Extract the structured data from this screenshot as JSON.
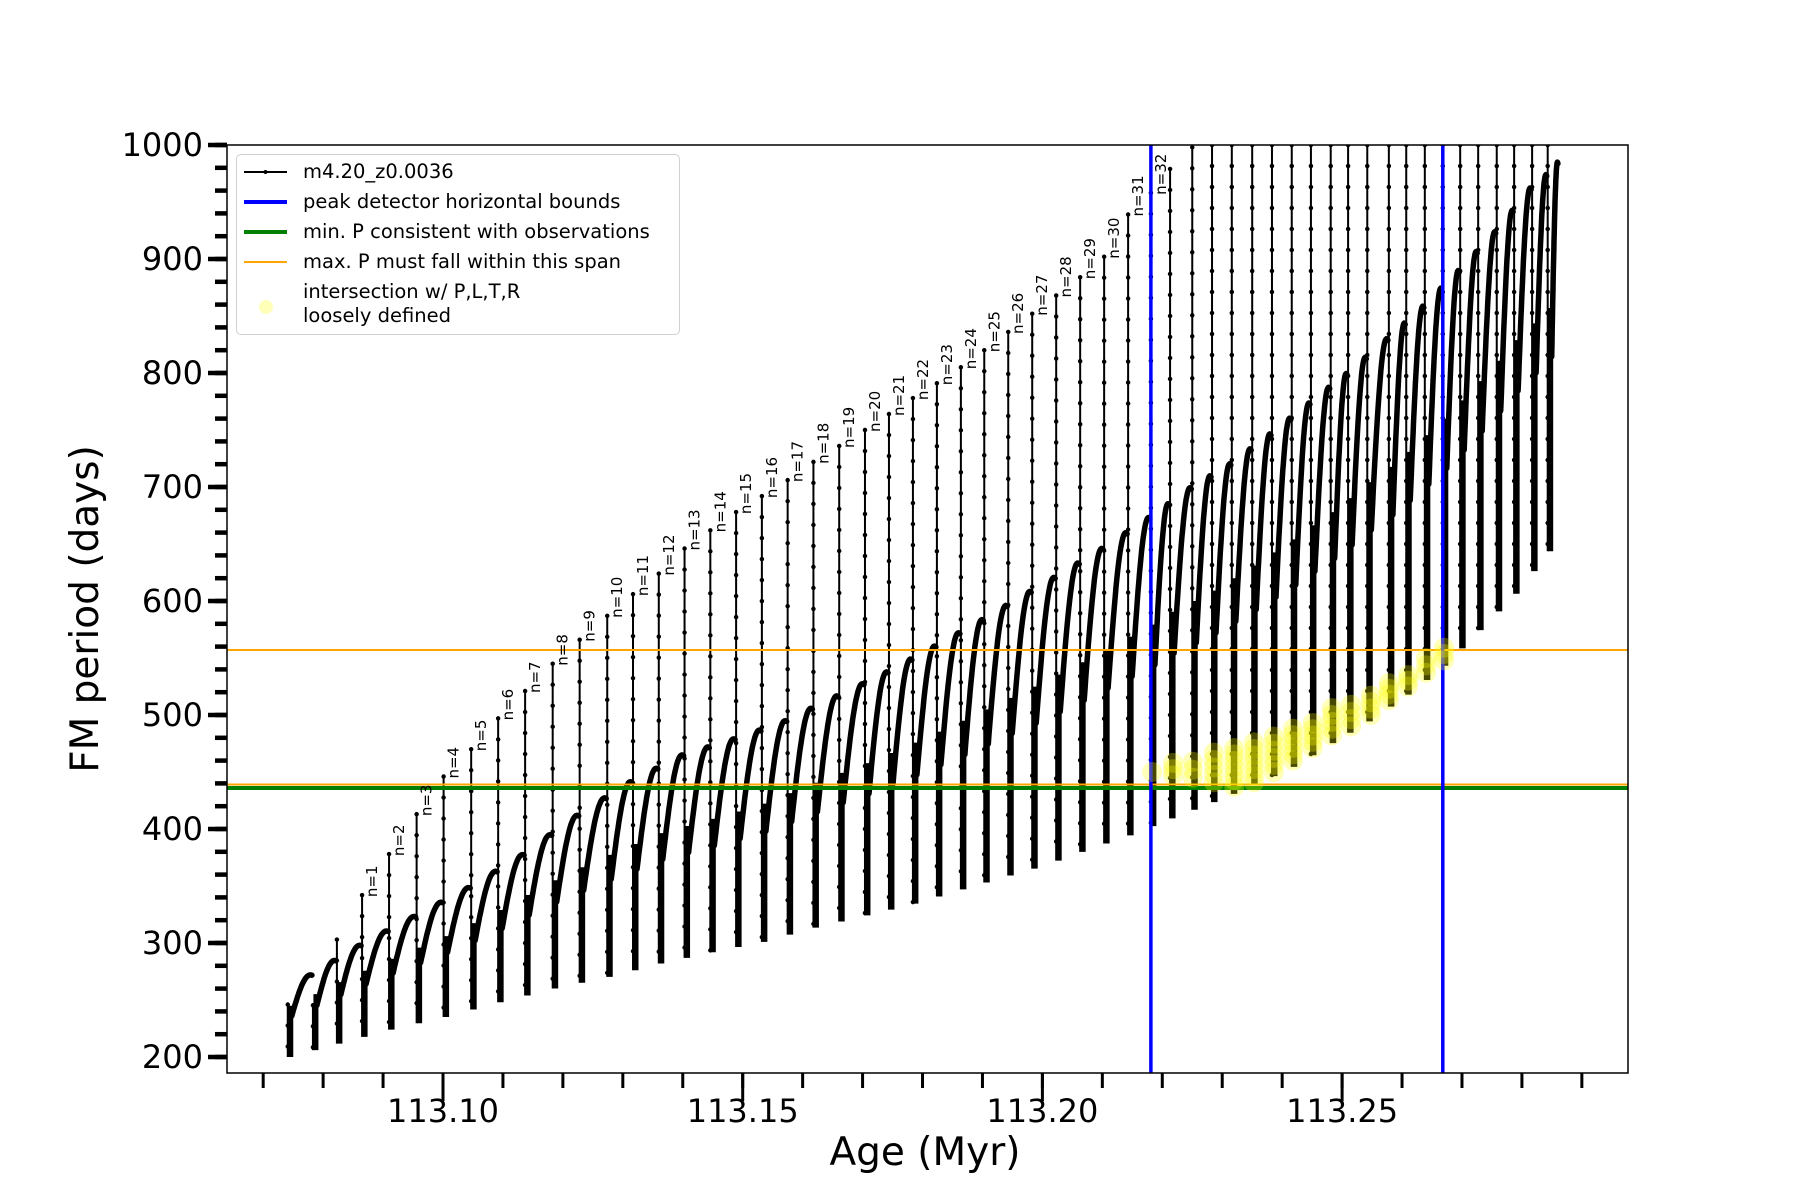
{
  "chart_data": {
    "type": "line",
    "xlabel": "Age (Myr)",
    "ylabel": "FM period (days)",
    "xlim": [
      113.0694,
      113.2977
    ],
    "ylim": [
      186,
      1000
    ],
    "xticks": {
      "values": [
        113.1,
        113.15,
        113.2,
        113.25
      ],
      "labels": [
        "113.10",
        "113.15",
        "113.20",
        "113.25"
      ],
      "minor_step": 0.01
    },
    "yticks": {
      "values": [
        200,
        300,
        400,
        500,
        600,
        700,
        800,
        900,
        1000
      ],
      "labels": [
        "200",
        "300",
        "400",
        "500",
        "600",
        "700",
        "800",
        "900",
        "1000"
      ],
      "minor_step": 20
    },
    "grid": false,
    "legend_position": "top-left",
    "legend": [
      {
        "label": "m4.20_z0.0036",
        "color": "#000000",
        "kind": "line-marker"
      },
      {
        "label": "peak detector horizontal bounds",
        "color": "#0000ff",
        "kind": "line"
      },
      {
        "label": "min. P consistent with observations",
        "color": "#008000",
        "kind": "line"
      },
      {
        "label": "max. P must fall within this span",
        "color": "#ffa500",
        "kind": "line"
      },
      {
        "label": "intersection w/ P,L,T,R",
        "label2": "loosely defined",
        "color": "#ffff66",
        "kind": "marker"
      }
    ],
    "series": {
      "name": "m4.20_z0.0036",
      "pulse_ages": [
        113.0741,
        113.0783,
        113.0823,
        113.0865,
        113.091,
        113.0956,
        113.1001,
        113.1047,
        113.1092,
        113.1137,
        113.1183,
        113.1228,
        113.1274,
        113.1317,
        113.136,
        113.1403,
        113.1446,
        113.1489,
        113.1532,
        113.1575,
        113.1618,
        113.1661,
        113.1704,
        113.1744,
        113.1784,
        113.1824,
        113.1864,
        113.1903,
        113.1943,
        113.1983,
        113.2023,
        113.2063,
        113.2103,
        113.2143,
        113.2181,
        113.2213,
        113.225,
        113.2283,
        113.2316,
        113.235,
        113.2383,
        113.2416,
        113.2448,
        113.2481,
        113.251,
        113.2542,
        113.2578,
        113.2607,
        113.2638,
        113.2668,
        113.2697,
        113.2727,
        113.2758,
        113.2787,
        113.2817,
        113.2843
      ],
      "pulse_spike_tops": [
        246,
        null,
        303,
        342,
        378,
        413,
        446,
        470,
        497,
        521,
        545,
        566,
        587,
        606,
        624,
        646,
        662,
        678,
        692,
        706,
        722,
        736,
        750,
        764,
        778,
        791,
        805,
        820,
        836,
        852,
        868,
        884,
        902,
        939,
        958,
        979,
        998,
        1000,
        1000,
        1000,
        1000,
        1000,
        1000,
        1000,
        1000,
        1000,
        1000,
        1000,
        1000,
        1000,
        1000,
        1000,
        1000,
        1000,
        1000,
        1000
      ],
      "arc_peak_envelope": [
        [
          113.0775,
          272
        ],
        [
          113.0857,
          298
        ],
        [
          113.0947,
          323
        ],
        [
          113.1037,
          348
        ],
        [
          113.1125,
          376
        ],
        [
          113.1217,
          411
        ],
        [
          113.1307,
          441
        ],
        [
          113.1395,
          465
        ],
        [
          113.1475,
          478
        ],
        [
          113.1559,
          493
        ],
        [
          113.1642,
          514
        ],
        [
          113.1726,
          535
        ],
        [
          113.1804,
          557
        ],
        [
          113.1883,
          580
        ],
        [
          113.1954,
          602
        ],
        [
          113.2029,
          625
        ],
        [
          113.2104,
          649
        ],
        [
          113.2175,
          674
        ],
        [
          113.2241,
          699
        ],
        [
          113.2313,
          722
        ],
        [
          113.2376,
          747
        ],
        [
          113.2443,
          775
        ],
        [
          113.2508,
          802
        ],
        [
          113.2572,
          831
        ],
        [
          113.2633,
          860
        ],
        [
          113.2693,
          892
        ],
        [
          113.2752,
          925
        ],
        [
          113.281,
          963
        ],
        [
          113.286,
          985
        ]
      ],
      "trough_envelope": [
        [
          113.0741,
          200
        ],
        [
          113.0825,
          212
        ],
        [
          113.091,
          224
        ],
        [
          113.1,
          235
        ],
        [
          113.1092,
          248
        ],
        [
          113.1182,
          260
        ],
        [
          113.1272,
          270
        ],
        [
          113.136,
          282
        ],
        [
          113.1447,
          292
        ],
        [
          113.1532,
          301
        ],
        [
          113.1614,
          313
        ],
        [
          113.1694,
          323
        ],
        [
          113.1774,
          333
        ],
        [
          113.1851,
          345
        ],
        [
          113.1928,
          357
        ],
        [
          113.2001,
          368
        ],
        [
          113.2074,
          382
        ],
        [
          113.2146,
          395
        ],
        [
          113.2216,
          410
        ],
        [
          113.2285,
          424
        ],
        [
          113.2353,
          439
        ],
        [
          113.2418,
          455
        ],
        [
          113.2483,
          476
        ],
        [
          113.2547,
          496
        ],
        [
          113.261,
          519
        ],
        [
          113.267,
          544
        ],
        [
          113.273,
          576
        ],
        [
          113.279,
          608
        ],
        [
          113.2845,
          645
        ]
      ],
      "end_point": [
        113.286,
        985
      ]
    },
    "mode_labels": {
      "first_pulse_index": 3,
      "labels": [
        "n=1",
        "n=2",
        "n=3",
        "n=4",
        "n=5",
        "n=6",
        "n=7",
        "n=8",
        "n=9",
        "n=10",
        "n=11",
        "n=12",
        "n=13",
        "n=14",
        "n=15",
        "n=16",
        "n=17",
        "n=18",
        "n=19",
        "n=20",
        "n=21",
        "n=22",
        "n=23",
        "n=24",
        "n=25",
        "n=26",
        "n=27",
        "n=28",
        "n=29",
        "n=30",
        "n=31",
        "n=32"
      ]
    },
    "vertical_lines": {
      "name": "peak detector horizontal bounds",
      "color": "#0000ff",
      "x": [
        113.2181,
        113.2668
      ]
    },
    "horizontal_lines": [
      {
        "name": "max. P must fall within this span",
        "color": "#ffa500",
        "y": 557
      },
      {
        "name": "max. P must fall within this span",
        "color": "#ffa500",
        "y": 439
      },
      {
        "name": "min. P consistent with observations",
        "color": "#008000",
        "y": 436
      }
    ],
    "intersection_points": {
      "color": "#ffff00",
      "clusters": [
        {
          "age": 113.2183,
          "ymin": 450,
          "ymax": 450
        },
        {
          "age": 113.2218,
          "ymin": 447,
          "ymax": 458
        },
        {
          "age": 113.2251,
          "ymin": 445,
          "ymax": 459
        },
        {
          "age": 113.2286,
          "ymin": 441,
          "ymax": 467
        },
        {
          "age": 113.232,
          "ymin": 437,
          "ymax": 471
        },
        {
          "age": 113.2353,
          "ymin": 441,
          "ymax": 476
        },
        {
          "age": 113.2386,
          "ymin": 450,
          "ymax": 481
        },
        {
          "age": 113.2418,
          "ymin": 460,
          "ymax": 488
        },
        {
          "age": 113.2451,
          "ymin": 471,
          "ymax": 493
        },
        {
          "age": 113.2483,
          "ymin": 482,
          "ymax": 506
        },
        {
          "age": 113.2515,
          "ymin": 490,
          "ymax": 509
        },
        {
          "age": 113.2548,
          "ymin": 500,
          "ymax": 517
        },
        {
          "age": 113.2578,
          "ymin": 513,
          "ymax": 528
        },
        {
          "age": 113.261,
          "ymin": 525,
          "ymax": 535
        },
        {
          "age": 113.264,
          "ymin": 537,
          "ymax": 550
        },
        {
          "age": 113.267,
          "ymin": 548,
          "ymax": 559
        }
      ]
    }
  }
}
